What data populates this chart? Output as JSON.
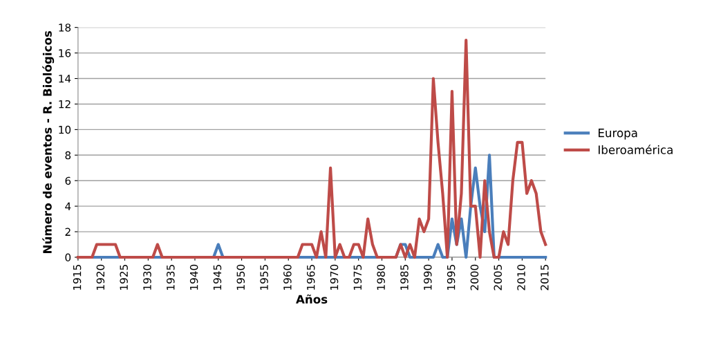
{
  "chart_data": {
    "type": "line",
    "xlabel": "Años",
    "ylabel": "Número de eventos - R. Biológicos",
    "x": [
      1915,
      1916,
      1917,
      1918,
      1919,
      1920,
      1921,
      1922,
      1923,
      1924,
      1925,
      1926,
      1927,
      1928,
      1929,
      1930,
      1931,
      1932,
      1933,
      1934,
      1935,
      1936,
      1937,
      1938,
      1939,
      1940,
      1941,
      1942,
      1943,
      1944,
      1945,
      1946,
      1947,
      1948,
      1949,
      1950,
      1951,
      1952,
      1953,
      1954,
      1955,
      1956,
      1957,
      1958,
      1959,
      1960,
      1961,
      1962,
      1963,
      1964,
      1965,
      1966,
      1967,
      1968,
      1969,
      1970,
      1971,
      1972,
      1973,
      1974,
      1975,
      1976,
      1977,
      1978,
      1979,
      1980,
      1981,
      1982,
      1983,
      1984,
      1985,
      1986,
      1987,
      1988,
      1989,
      1990,
      1991,
      1992,
      1993,
      1994,
      1995,
      1996,
      1997,
      1998,
      1999,
      2000,
      2001,
      2002,
      2003,
      2004,
      2005,
      2006,
      2007,
      2008,
      2009,
      2010,
      2011,
      2012,
      2013,
      2014,
      2015
    ],
    "series": [
      {
        "name": "Europa",
        "color": "#4a7ebb",
        "values": [
          null,
          null,
          0,
          0,
          0,
          0,
          0,
          0,
          0,
          0,
          0,
          0,
          0,
          0,
          0,
          0,
          0,
          0,
          0,
          0,
          0,
          0,
          0,
          0,
          0,
          0,
          0,
          0,
          0,
          0,
          1,
          0,
          0,
          0,
          0,
          0,
          0,
          0,
          0,
          0,
          0,
          0,
          0,
          0,
          0,
          0,
          0,
          0,
          0,
          0,
          0,
          0,
          0,
          0,
          0,
          0,
          0,
          0,
          0,
          0,
          0,
          0,
          0,
          0,
          0,
          0,
          0,
          0,
          0,
          1,
          1,
          0,
          0,
          0,
          0,
          0,
          0,
          1,
          0,
          0,
          3,
          1,
          3,
          0,
          4,
          7,
          4,
          2,
          8,
          0,
          0,
          0,
          0,
          0,
          0,
          0,
          0,
          0,
          0,
          0,
          0
        ]
      },
      {
        "name": "Iberoamérica",
        "color": "#be4b48",
        "values": [
          0,
          0,
          0,
          0,
          1,
          1,
          1,
          1,
          1,
          0,
          0,
          0,
          0,
          0,
          0,
          0,
          0,
          1,
          0,
          0,
          0,
          0,
          0,
          0,
          0,
          0,
          0,
          0,
          0,
          0,
          0,
          0,
          0,
          0,
          0,
          0,
          0,
          0,
          0,
          0,
          0,
          0,
          0,
          0,
          0,
          0,
          0,
          0,
          1,
          1,
          1,
          0,
          2,
          0,
          7,
          0,
          1,
          0,
          0,
          1,
          1,
          0,
          3,
          1,
          0,
          0,
          0,
          0,
          0,
          1,
          0,
          1,
          0,
          3,
          2,
          3,
          14,
          9,
          5,
          0,
          13,
          1,
          5,
          17,
          4,
          4,
          0,
          6,
          2,
          0,
          0,
          2,
          1,
          6,
          9,
          9,
          5,
          6,
          5,
          2,
          1
        ]
      }
    ],
    "xlim": [
      1915,
      2015
    ],
    "xticks": [
      1915,
      1920,
      1925,
      1930,
      1935,
      1940,
      1945,
      1950,
      1955,
      1960,
      1965,
      1970,
      1975,
      1980,
      1985,
      1990,
      1995,
      2000,
      2005,
      2010,
      2015
    ],
    "ylim": [
      0,
      18
    ],
    "yticks": [
      0,
      2,
      4,
      6,
      8,
      10,
      12,
      14,
      16,
      18
    ],
    "grid": "y",
    "legend": "right",
    "marker": "none",
    "line_style": "solid"
  }
}
